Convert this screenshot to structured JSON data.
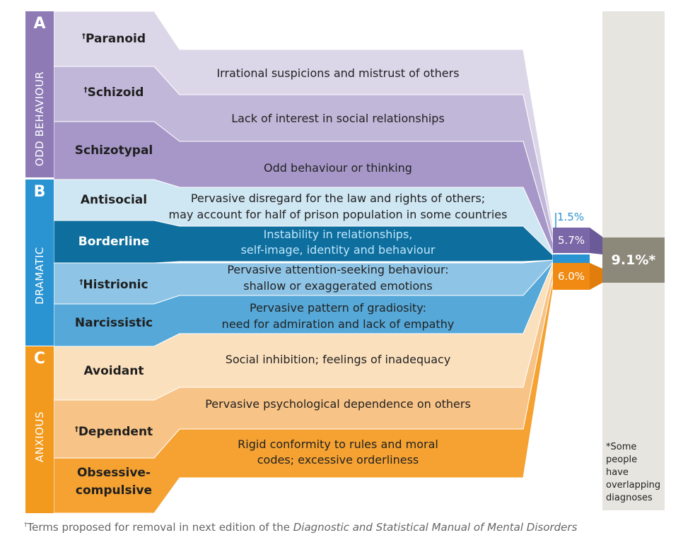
{
  "categories": [
    {
      "letter": "A",
      "name": "ODD BEHAVIOUR",
      "color": "#8e7ab5"
    },
    {
      "letter": "B",
      "name": "DRAMATIC",
      "color": "#2a93d1"
    },
    {
      "letter": "C",
      "name": "ANXIOUS",
      "color": "#f29a1e"
    }
  ],
  "disorders": [
    {
      "name": "Paranoid",
      "dagger": "†",
      "line1": "Irrational suspicions and mistrust of others",
      "line2": "",
      "fill": "#dcd6e9",
      "text": "#1f1f1f"
    },
    {
      "name": "Schizoid",
      "dagger": "†",
      "line1": "Lack of interest in social relationships",
      "line2": "",
      "fill": "#c1b7d9",
      "text": "#1f1f1f"
    },
    {
      "name": "Schizotypal",
      "dagger": "",
      "line1": "Odd behaviour or thinking",
      "line2": "",
      "fill": "#a697c8",
      "text": "#1f1f1f"
    },
    {
      "name": "Antisocial",
      "dagger": "",
      "line1": "Pervasive disregard for the law and rights of others;",
      "line2": "may account for half of prison population in some countries",
      "fill": "#cfe6f3",
      "text": "#1f1f1f"
    },
    {
      "name": "Borderline",
      "dagger": "",
      "line1": "Instability in relationships,",
      "line2": "self-image, identity and behaviour",
      "fill": "#0e6e9e",
      "text": "#ffffff"
    },
    {
      "name": "Histrionic",
      "dagger": "†",
      "line1": "Pervasive attention-seeking behaviour:",
      "line2": "shallow or exaggerated emotions",
      "fill": "#8ec4e6",
      "text": "#1f1f1f"
    },
    {
      "name": "Narcissistic",
      "dagger": "",
      "line1": "Pervasive pattern of gradiosity:",
      "line2": "need for admiration and lack of empathy",
      "fill": "#55a8d8",
      "text": "#1f1f1f"
    },
    {
      "name": "Avoidant",
      "dagger": "",
      "line1": "Social inhibition; feelings of inadequacy",
      "line2": "",
      "fill": "#fbe0bd",
      "text": "#1f1f1f"
    },
    {
      "name": "Dependent",
      "dagger": "†",
      "line1": "Pervasive psychological dependence on others",
      "line2": "",
      "fill": "#f8c386",
      "text": "#1f1f1f"
    },
    {
      "name": "Obsessive-",
      "name2": "compulsive",
      "dagger": "",
      "line1": "Rigid conformity to rules and moral",
      "line2": "codes; excessive orderliness",
      "fill": "#f5a232",
      "text": "#1f1f1f"
    }
  ],
  "prevalence": [
    {
      "label": "1.5%",
      "value": 1.5,
      "color": "#2a93d1"
    },
    {
      "label": "5.7%",
      "value": 5.7,
      "color": "#7a67a8"
    },
    {
      "label": "6.0%",
      "value": 6.0,
      "color": "#f08a12"
    }
  ],
  "total": {
    "label": "9.1%*",
    "value": 9.1,
    "color": "#8c887a",
    "column_color": "#e6e5df"
  },
  "note": [
    "*Some",
    "people",
    "have",
    "overlapping",
    "diagnoses"
  ],
  "footnote": {
    "dagger": "†",
    "text": "Terms proposed for removal in next edition of the ",
    "italic": "Diagnostic and Statistical Manual of Mental Disorders"
  }
}
